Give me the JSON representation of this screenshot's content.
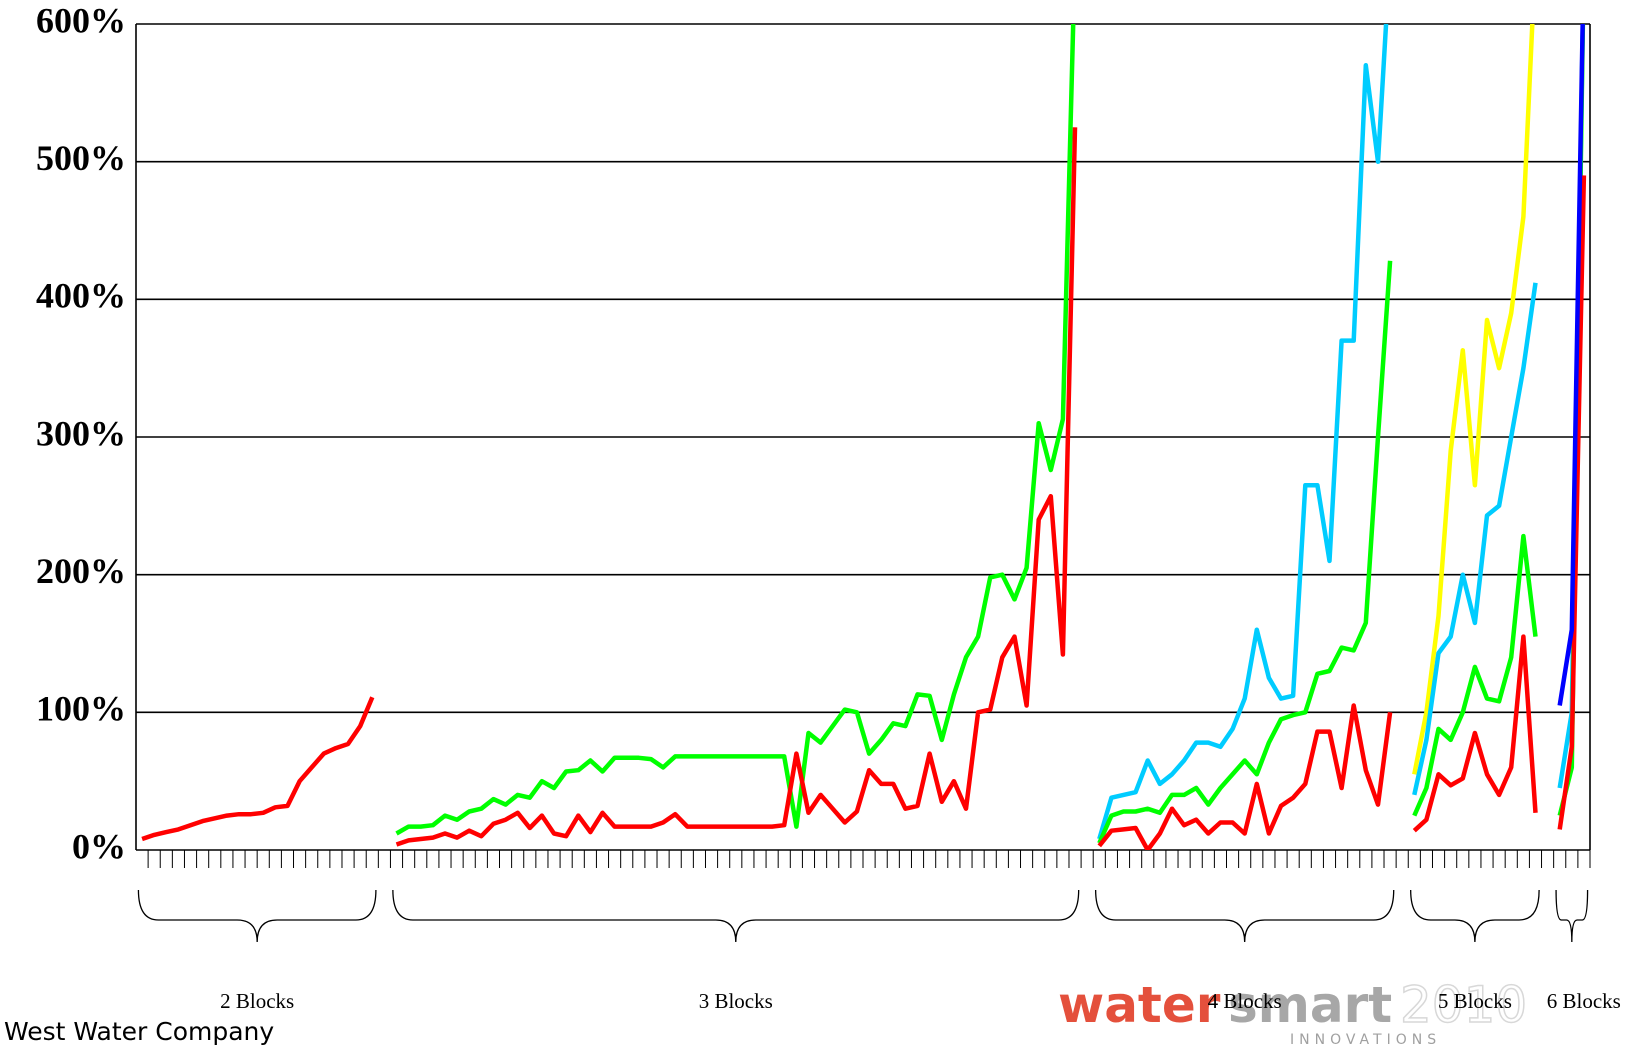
{
  "chart_data": {
    "type": "line",
    "categories": [
      null,
      null,
      null,
      null,
      null,
      null,
      null,
      null,
      null,
      null,
      null,
      null,
      null,
      null,
      null,
      null,
      null,
      null,
      null,
      null,
      null,
      null,
      null,
      null,
      null,
      null,
      null,
      null,
      null,
      null,
      null,
      null,
      null,
      null,
      null,
      null,
      null,
      null,
      null,
      null,
      null,
      null,
      null,
      null,
      null,
      null,
      null,
      null,
      null,
      null,
      null,
      null,
      null,
      null,
      null,
      null,
      null,
      null,
      null,
      null,
      null,
      null,
      null,
      null,
      null,
      null,
      null,
      null,
      null,
      null,
      null,
      null,
      null,
      null,
      null,
      null,
      null,
      null,
      null,
      null,
      null,
      null,
      null,
      null,
      null,
      null,
      null,
      null,
      null,
      null,
      null,
      null,
      null,
      null,
      null,
      null,
      null,
      null,
      null,
      null,
      null,
      null,
      null,
      null,
      null,
      null,
      null,
      null,
      null,
      null,
      null,
      null,
      null,
      null,
      null,
      null,
      null,
      null,
      null,
      null
    ],
    "ylim": [
      0,
      600
    ],
    "yticks": [
      {
        "value": 0,
        "label": "0%"
      },
      {
        "value": 100,
        "label": "100%"
      },
      {
        "value": 200,
        "label": "200%"
      },
      {
        "value": 300,
        "label": "300%"
      },
      {
        "value": 400,
        "label": "400%"
      },
      {
        "value": 500,
        "label": "500%"
      },
      {
        "value": 600,
        "label": "600%"
      }
    ],
    "grid": true,
    "series": [
      {
        "color": "#ffff00",
        "values": [
          null,
          null,
          null,
          null,
          null,
          null,
          null,
          null,
          null,
          null,
          null,
          null,
          null,
          null,
          null,
          null,
          null,
          null,
          null,
          null,
          null,
          null,
          null,
          null,
          null,
          null,
          null,
          null,
          null,
          null,
          null,
          null,
          null,
          null,
          null,
          null,
          null,
          null,
          null,
          null,
          null,
          null,
          null,
          null,
          null,
          null,
          null,
          null,
          null,
          null,
          null,
          null,
          null,
          null,
          null,
          null,
          null,
          null,
          null,
          null,
          null,
          null,
          null,
          null,
          null,
          null,
          null,
          null,
          null,
          null,
          null,
          null,
          null,
          null,
          null,
          null,
          null,
          null,
          null,
          null,
          null,
          null,
          null,
          null,
          null,
          null,
          null,
          null,
          null,
          null,
          null,
          null,
          null,
          null,
          null,
          null,
          null,
          null,
          null,
          null,
          null,
          null,
          null,
          null,
          null,
          55,
          100,
          170,
          290,
          363,
          265,
          385,
          350,
          390,
          460,
          650,
          null,
          null,
          null,
          null
        ]
      },
      {
        "color": "#00ccff",
        "values": [
          null,
          null,
          null,
          null,
          null,
          null,
          null,
          null,
          null,
          null,
          null,
          null,
          null,
          null,
          null,
          null,
          null,
          null,
          null,
          null,
          null,
          null,
          null,
          null,
          null,
          null,
          null,
          null,
          null,
          null,
          null,
          null,
          null,
          null,
          null,
          null,
          null,
          null,
          null,
          null,
          null,
          null,
          null,
          null,
          null,
          null,
          null,
          null,
          null,
          null,
          null,
          null,
          null,
          null,
          null,
          null,
          null,
          null,
          null,
          null,
          null,
          null,
          null,
          null,
          null,
          null,
          null,
          null,
          null,
          null,
          null,
          null,
          null,
          null,
          null,
          null,
          null,
          null,
          null,
          8,
          38,
          40,
          42,
          65,
          48,
          55,
          65,
          78,
          78,
          75,
          88,
          110,
          160,
          125,
          110,
          112,
          265,
          265,
          210,
          370,
          370,
          570,
          500,
          650,
          null,
          40,
          80,
          143,
          155,
          200,
          165,
          243,
          250,
          300,
          350,
          412,
          null,
          45,
          100,
          650
        ]
      },
      {
        "color": "#00ff00",
        "values": [
          null,
          null,
          null,
          null,
          null,
          null,
          null,
          null,
          null,
          null,
          null,
          null,
          null,
          null,
          null,
          null,
          null,
          null,
          null,
          null,
          null,
          12,
          17,
          17,
          18,
          25,
          22,
          28,
          30,
          37,
          33,
          40,
          38,
          50,
          45,
          57,
          58,
          65,
          57,
          67,
          67,
          67,
          66,
          60,
          68,
          68,
          68,
          68,
          68,
          68,
          68,
          68,
          68,
          68,
          17,
          85,
          78,
          90,
          102,
          100,
          70,
          80,
          92,
          90,
          113,
          112,
          80,
          113,
          140,
          155,
          198,
          200,
          182,
          205,
          310,
          276,
          313,
          650,
          null,
          5,
          25,
          28,
          28,
          30,
          27,
          40,
          40,
          45,
          33,
          45,
          55,
          65,
          55,
          78,
          95,
          98,
          100,
          128,
          130,
          147,
          145,
          165,
          300,
          428,
          null,
          25,
          45,
          88,
          80,
          100,
          133,
          110,
          108,
          140,
          228,
          155,
          null,
          25,
          60,
          650
        ]
      },
      {
        "color": "#ff0000",
        "values": [
          8,
          11,
          13,
          15,
          18,
          21,
          23,
          25,
          26,
          26,
          27,
          31,
          32,
          50,
          60,
          70,
          74,
          77,
          90,
          111,
          null,
          4,
          7,
          8,
          9,
          12,
          9,
          14,
          10,
          19,
          22,
          27,
          16,
          25,
          12,
          10,
          25,
          13,
          27,
          17,
          17,
          17,
          17,
          20,
          26,
          17,
          17,
          17,
          17,
          17,
          17,
          17,
          17,
          18,
          70,
          27,
          40,
          30,
          20,
          28,
          58,
          48,
          48,
          30,
          32,
          70,
          35,
          50,
          30,
          100,
          102,
          140,
          155,
          105,
          240,
          257,
          142,
          525,
          null,
          3,
          14,
          15,
          16,
          0,
          12,
          30,
          18,
          22,
          12,
          20,
          20,
          12,
          48,
          12,
          32,
          38,
          48,
          86,
          86,
          45,
          105,
          58,
          33,
          100,
          null,
          14,
          22,
          55,
          47,
          52,
          85,
          55,
          40,
          60,
          155,
          27,
          null,
          15,
          75,
          490
        ]
      },
      {
        "color": "#0000ff",
        "values": [
          null,
          null,
          null,
          null,
          null,
          null,
          null,
          null,
          null,
          null,
          null,
          null,
          null,
          null,
          null,
          null,
          null,
          null,
          null,
          null,
          null,
          null,
          null,
          null,
          null,
          null,
          null,
          null,
          null,
          null,
          null,
          null,
          null,
          null,
          null,
          null,
          null,
          null,
          null,
          null,
          null,
          null,
          null,
          null,
          null,
          null,
          null,
          null,
          null,
          null,
          null,
          null,
          null,
          null,
          null,
          null,
          null,
          null,
          null,
          null,
          null,
          null,
          null,
          null,
          null,
          null,
          null,
          null,
          null,
          null,
          null,
          null,
          null,
          null,
          null,
          null,
          null,
          null,
          null,
          null,
          null,
          null,
          null,
          null,
          null,
          null,
          null,
          null,
          null,
          null,
          null,
          null,
          null,
          null,
          null,
          null,
          null,
          null,
          null,
          null,
          null,
          null,
          null,
          null,
          null,
          null,
          null,
          null,
          null,
          null,
          null,
          null,
          null,
          null,
          null,
          null,
          null,
          105,
          160,
          650
        ]
      }
    ],
    "groups": [
      "2 Blocks",
      "3 Blocks",
      "4 Blocks",
      "5 Blocks",
      "6 Blocks"
    ]
  },
  "footer": "West Water Company",
  "logo": {
    "word1": "water",
    "word2": "smart",
    "year": "2010",
    "tagline": "INNOVATIONS"
  }
}
